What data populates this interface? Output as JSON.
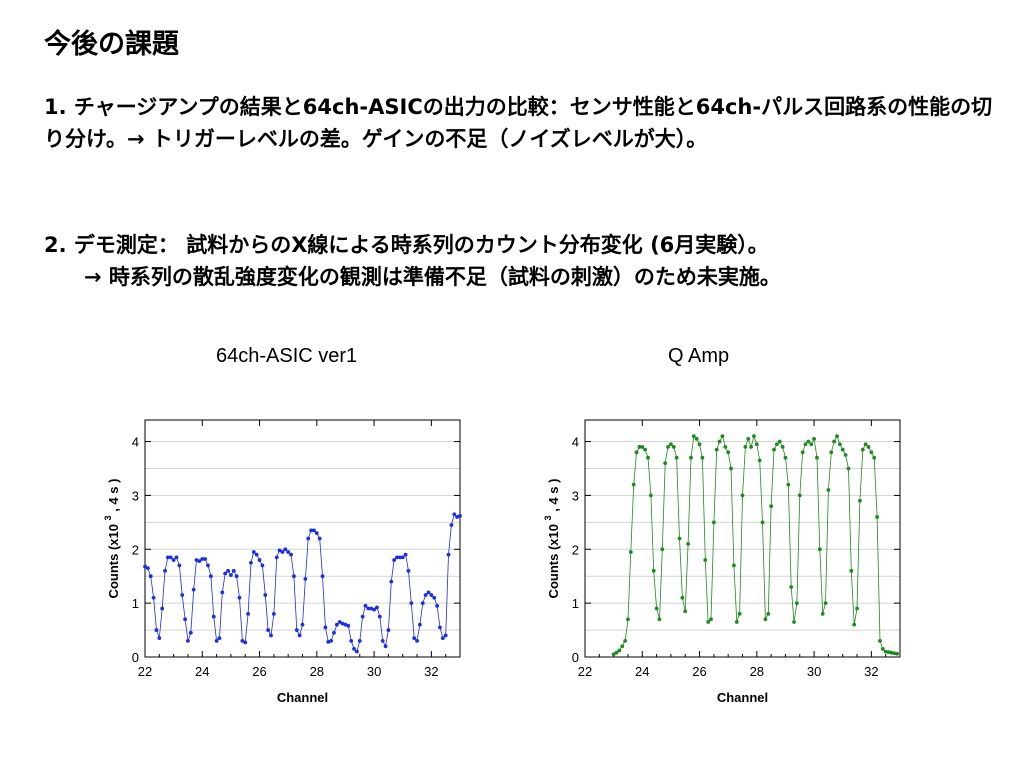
{
  "slide": {
    "title": "今後の課題",
    "item1": "1. チャージアンプの結果と64ch-ASICの出力の比較：センサ性能と64ch-パルス回路系の性能の切り分け。→ トリガーレベルの差。ゲインの不足（ノイズレベルが大）。",
    "item2_line1": "2. デモ測定： 試料からのX線による時系列のカウント分布変化 (6月実験）。",
    "item2_line2": "→ 時系列の散乱強度変化の観測は準備不足（試料の刺激）のため未実施。"
  },
  "chart_data": [
    {
      "type": "scatter",
      "title": "64ch-ASIC ver1",
      "xlabel": "Channel",
      "ylabel": "Counts (x10^3, 4 s)",
      "xlim": [
        22,
        33
      ],
      "ylim": [
        0,
        4.4
      ],
      "xticks": [
        "22",
        "24",
        "26",
        "28",
        "30",
        "32"
      ],
      "yticks": [
        "0",
        "1",
        "2",
        "3",
        "4"
      ],
      "ylabel_parts": [
        "Counts",
        "(x10",
        "3",
        ", 4 s",
        ")"
      ],
      "grid": true,
      "color": "#1a2ee6",
      "x": [
        22.0,
        22.1,
        22.2,
        22.3,
        22.4,
        22.5,
        22.6,
        22.7,
        22.8,
        22.9,
        23.0,
        23.1,
        23.2,
        23.3,
        23.4,
        23.5,
        23.6,
        23.7,
        23.8,
        23.9,
        24.0,
        24.1,
        24.2,
        24.3,
        24.4,
        24.5,
        24.6,
        24.7,
        24.8,
        24.9,
        25.0,
        25.1,
        25.2,
        25.3,
        25.4,
        25.5,
        25.6,
        25.7,
        25.8,
        25.9,
        26.0,
        26.1,
        26.2,
        26.3,
        26.4,
        26.5,
        26.6,
        26.7,
        26.8,
        26.9,
        27.0,
        27.1,
        27.2,
        27.3,
        27.4,
        27.5,
        27.6,
        27.7,
        27.8,
        27.9,
        28.0,
        28.1,
        28.2,
        28.3,
        28.4,
        28.5,
        28.6,
        28.7,
        28.8,
        28.9,
        29.0,
        29.1,
        29.2,
        29.3,
        29.4,
        29.5,
        29.6,
        29.7,
        29.8,
        29.9,
        30.0,
        30.1,
        30.2,
        30.3,
        30.4,
        30.5,
        30.6,
        30.7,
        30.8,
        30.9,
        31.0,
        31.1,
        31.2,
        31.3,
        31.4,
        31.5,
        31.6,
        31.7,
        31.8,
        31.9,
        32.0,
        32.1,
        32.2,
        32.3,
        32.4,
        32.5,
        32.6,
        32.7,
        32.8,
        32.9,
        33.0
      ],
      "y": [
        1.68,
        1.65,
        1.5,
        1.1,
        0.5,
        0.35,
        0.9,
        1.6,
        1.85,
        1.85,
        1.8,
        1.85,
        1.7,
        1.15,
        0.7,
        0.3,
        0.45,
        1.25,
        1.8,
        1.78,
        1.82,
        1.82,
        1.7,
        1.5,
        0.75,
        0.3,
        0.35,
        1.2,
        1.55,
        1.6,
        1.52,
        1.6,
        1.5,
        1.1,
        0.3,
        0.27,
        0.8,
        1.75,
        1.95,
        1.9,
        1.8,
        1.7,
        1.15,
        0.5,
        0.4,
        0.8,
        1.85,
        1.98,
        1.95,
        2.0,
        1.95,
        1.9,
        1.5,
        0.5,
        0.4,
        0.6,
        1.45,
        2.2,
        2.35,
        2.35,
        2.3,
        2.2,
        1.5,
        0.55,
        0.28,
        0.3,
        0.45,
        0.6,
        0.65,
        0.62,
        0.6,
        0.58,
        0.3,
        0.15,
        0.1,
        0.3,
        0.75,
        0.95,
        0.9,
        0.9,
        0.88,
        0.92,
        0.75,
        0.3,
        0.2,
        0.5,
        1.4,
        1.8,
        1.85,
        1.85,
        1.85,
        1.9,
        1.6,
        1.0,
        0.35,
        0.3,
        0.6,
        1.0,
        1.15,
        1.2,
        1.15,
        1.1,
        0.95,
        0.55,
        0.35,
        0.4,
        1.9,
        2.45,
        2.65,
        2.6,
        2.62
      ]
    },
    {
      "type": "scatter",
      "title": "Q Amp",
      "xlabel": "Channel",
      "ylabel": "Counts (x10^3, 4 s)",
      "xlim": [
        22,
        33
      ],
      "ylim": [
        0,
        4.4
      ],
      "xticks": [
        "22",
        "24",
        "26",
        "28",
        "30",
        "32"
      ],
      "yticks": [
        "0",
        "1",
        "2",
        "3",
        "4"
      ],
      "ylabel_parts": [
        "Counts",
        "(x10",
        "3",
        ", 4 s",
        ")"
      ],
      "grid": true,
      "color": "#1f8a1f",
      "x": [
        23.0,
        23.1,
        23.2,
        23.3,
        23.4,
        23.5,
        23.6,
        23.7,
        23.8,
        23.9,
        24.0,
        24.1,
        24.2,
        24.3,
        24.4,
        24.5,
        24.6,
        24.7,
        24.8,
        24.9,
        25.0,
        25.1,
        25.2,
        25.3,
        25.4,
        25.5,
        25.6,
        25.7,
        25.8,
        25.9,
        26.0,
        26.1,
        26.2,
        26.3,
        26.4,
        26.5,
        26.6,
        26.7,
        26.8,
        26.9,
        27.0,
        27.1,
        27.2,
        27.3,
        27.4,
        27.5,
        27.6,
        27.7,
        27.8,
        27.9,
        28.0,
        28.1,
        28.2,
        28.3,
        28.4,
        28.5,
        28.6,
        28.7,
        28.8,
        28.9,
        29.0,
        29.1,
        29.2,
        29.3,
        29.4,
        29.5,
        29.6,
        29.7,
        29.8,
        29.9,
        30.0,
        30.1,
        30.2,
        30.3,
        30.4,
        30.5,
        30.6,
        30.7,
        30.8,
        30.9,
        31.0,
        31.1,
        31.2,
        31.3,
        31.4,
        31.5,
        31.6,
        31.7,
        31.8,
        31.9,
        32.0,
        32.1,
        32.2,
        32.3,
        32.4,
        32.5,
        32.6,
        32.7,
        32.8,
        32.9
      ],
      "y": [
        0.05,
        0.08,
        0.12,
        0.2,
        0.3,
        0.7,
        1.95,
        3.2,
        3.8,
        3.9,
        3.9,
        3.85,
        3.7,
        3.0,
        1.6,
        0.9,
        0.7,
        2.0,
        3.6,
        3.9,
        3.95,
        3.9,
        3.7,
        2.2,
        1.1,
        0.85,
        2.1,
        3.7,
        4.1,
        4.05,
        3.95,
        3.7,
        1.8,
        0.65,
        0.7,
        2.5,
        3.85,
        4.0,
        4.1,
        3.9,
        3.8,
        3.5,
        1.7,
        0.65,
        0.8,
        3.0,
        3.9,
        4.05,
        3.9,
        4.1,
        3.95,
        3.65,
        2.5,
        0.7,
        0.8,
        2.8,
        3.85,
        3.95,
        4.0,
        3.9,
        3.7,
        3.2,
        1.3,
        0.65,
        1.0,
        3.0,
        3.8,
        3.95,
        4.0,
        3.95,
        4.05,
        3.7,
        2.0,
        0.8,
        1.0,
        3.1,
        3.8,
        4.0,
        4.1,
        3.95,
        3.85,
        3.75,
        3.5,
        1.6,
        0.6,
        0.9,
        2.9,
        3.85,
        3.95,
        3.9,
        3.8,
        3.7,
        2.6,
        0.3,
        0.15,
        0.1,
        0.09,
        0.08,
        0.07,
        0.06
      ]
    }
  ]
}
